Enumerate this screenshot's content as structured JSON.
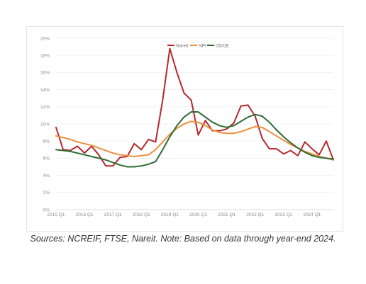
{
  "caption": "Sources: NCREIF, FTSE, Nareit. Note: Based on data through year-end 2024.",
  "chart_data": {
    "type": "line",
    "title": "",
    "xlabel": "",
    "ylabel": "",
    "ylim": [
      0,
      20
    ],
    "y_ticks": [
      0,
      2,
      4,
      6,
      8,
      10,
      12,
      14,
      16,
      18,
      20
    ],
    "y_tick_format": "%",
    "x_tick_labels": [
      "2015 Q1",
      "2016 Q1",
      "2017 Q1",
      "2018 Q1",
      "2019 Q1",
      "2020 Q1",
      "2021 Q1",
      "2022 Q1",
      "2023 Q1",
      "2024 Q1"
    ],
    "grid": "horizontal",
    "legend_position": "top-center",
    "series": [
      {
        "name": "Nareit",
        "color": "#b5282b",
        "values": [
          9.6,
          7.0,
          6.9,
          7.4,
          6.6,
          7.4,
          6.4,
          5.1,
          5.1,
          6.1,
          6.2,
          7.7,
          7.0,
          8.2,
          7.9,
          12.8,
          18.8,
          16.0,
          13.6,
          12.8,
          8.7,
          10.4,
          9.2,
          9.2,
          9.4,
          10.1,
          12.1,
          12.2,
          10.9,
          8.3,
          7.1,
          7.1,
          6.5,
          6.9,
          6.3,
          7.9,
          7.1,
          6.4,
          8.0,
          5.8
        ]
      },
      {
        "name": "NPI",
        "color": "#ec8f3e",
        "values": [
          8.6,
          8.4,
          8.2,
          7.9,
          7.7,
          7.5,
          7.2,
          6.9,
          6.6,
          6.4,
          6.3,
          6.2,
          6.3,
          6.4,
          7.0,
          7.9,
          8.8,
          9.5,
          10.0,
          10.3,
          10.2,
          9.8,
          9.3,
          9.0,
          8.9,
          8.9,
          9.1,
          9.4,
          9.7,
          9.6,
          9.1,
          8.6,
          8.1,
          7.6,
          7.2,
          6.8,
          6.5,
          6.2,
          6.0,
          5.8
        ]
      },
      {
        "name": "ODCE",
        "color": "#2e6b34",
        "values": [
          7.0,
          6.9,
          6.8,
          6.6,
          6.4,
          6.2,
          6.0,
          5.8,
          5.5,
          5.2,
          5.0,
          5.0,
          5.1,
          5.3,
          5.6,
          7.0,
          8.5,
          9.8,
          10.8,
          11.4,
          11.4,
          10.8,
          10.2,
          9.8,
          9.6,
          9.8,
          10.3,
          10.8,
          11.1,
          10.9,
          10.2,
          9.3,
          8.5,
          7.8,
          7.2,
          6.7,
          6.3,
          6.1,
          6.0,
          5.9
        ]
      }
    ]
  }
}
